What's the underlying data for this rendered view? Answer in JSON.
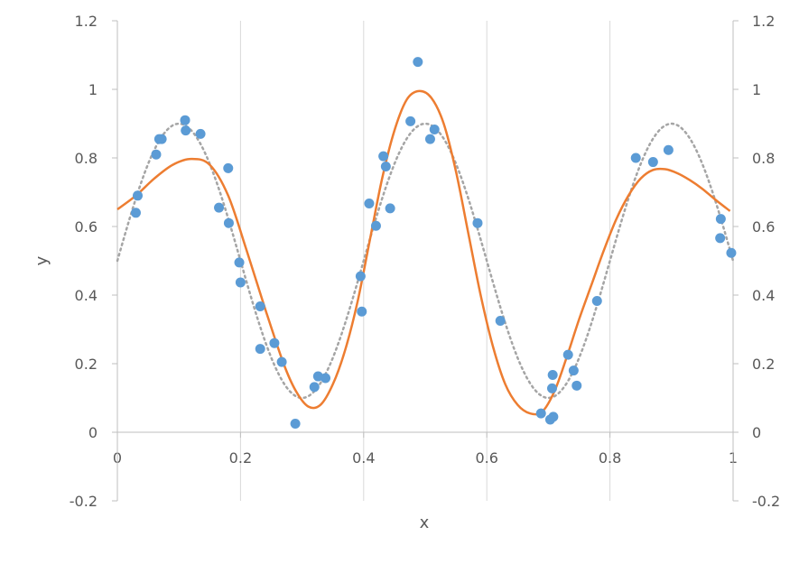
{
  "chart_data": {
    "type": "scatter",
    "title": "",
    "xlabel": "x",
    "ylabel": "y",
    "xlim": [
      0,
      1
    ],
    "ylim": [
      -0.2,
      1.2
    ],
    "xticks": [
      "0",
      "0.2",
      "0.4",
      "0.6",
      "0.8",
      "1"
    ],
    "yticks": [
      "-0.2",
      "0",
      "0.2",
      "0.4",
      "0.6",
      "0.8",
      "1",
      "1.2"
    ],
    "y2ticks": [
      "-0.2",
      "0",
      "0.2",
      "0.4",
      "0.6",
      "0.8",
      "1",
      "1.2"
    ],
    "grid": "vertical",
    "colors": {
      "points": "#5b9bd5",
      "fit": "#ed7d31",
      "true": "#a5a5a5",
      "grid": "#d9d9d9",
      "axis": "#bfbfbf"
    },
    "series": [
      {
        "kind": "scatter",
        "points": [
          [
            0.03,
            0.64
          ],
          [
            0.033,
            0.69
          ],
          [
            0.063,
            0.81
          ],
          [
            0.068,
            0.855
          ],
          [
            0.072,
            0.855
          ],
          [
            0.11,
            0.91
          ],
          [
            0.111,
            0.88
          ],
          [
            0.135,
            0.87
          ],
          [
            0.165,
            0.655
          ],
          [
            0.18,
            0.77
          ],
          [
            0.181,
            0.61
          ],
          [
            0.198,
            0.495
          ],
          [
            0.2,
            0.437
          ],
          [
            0.232,
            0.367
          ],
          [
            0.232,
            0.243
          ],
          [
            0.255,
            0.26
          ],
          [
            0.267,
            0.205
          ],
          [
            0.289,
            0.025
          ],
          [
            0.32,
            0.132
          ],
          [
            0.326,
            0.163
          ],
          [
            0.338,
            0.158
          ],
          [
            0.395,
            0.455
          ],
          [
            0.397,
            0.352
          ],
          [
            0.409,
            0.667
          ],
          [
            0.42,
            0.602
          ],
          [
            0.432,
            0.805
          ],
          [
            0.436,
            0.775
          ],
          [
            0.443,
            0.653
          ],
          [
            0.476,
            0.907
          ],
          [
            0.488,
            1.08
          ],
          [
            0.508,
            0.855
          ],
          [
            0.515,
            0.883
          ],
          [
            0.585,
            0.61
          ],
          [
            0.622,
            0.325
          ],
          [
            0.688,
            0.055
          ],
          [
            0.703,
            0.037
          ],
          [
            0.706,
            0.128
          ],
          [
            0.707,
            0.167
          ],
          [
            0.708,
            0.045
          ],
          [
            0.732,
            0.226
          ],
          [
            0.741,
            0.18
          ],
          [
            0.746,
            0.136
          ],
          [
            0.779,
            0.383
          ],
          [
            0.842,
            0.8
          ],
          [
            0.87,
            0.788
          ],
          [
            0.895,
            0.823
          ],
          [
            0.979,
            0.566
          ],
          [
            0.98,
            0.622
          ],
          [
            0.997,
            0.523
          ]
        ]
      },
      {
        "kind": "line",
        "style": "solid",
        "points": [
          [
            0,
            0.65
          ],
          [
            0.03,
            0.69
          ],
          [
            0.06,
            0.74
          ],
          [
            0.09,
            0.78
          ],
          [
            0.12,
            0.797
          ],
          [
            0.15,
            0.78
          ],
          [
            0.18,
            0.69
          ],
          [
            0.21,
            0.53
          ],
          [
            0.24,
            0.36
          ],
          [
            0.27,
            0.2
          ],
          [
            0.29,
            0.12
          ],
          [
            0.31,
            0.075
          ],
          [
            0.33,
            0.08
          ],
          [
            0.35,
            0.14
          ],
          [
            0.37,
            0.24
          ],
          [
            0.39,
            0.38
          ],
          [
            0.41,
            0.56
          ],
          [
            0.43,
            0.74
          ],
          [
            0.45,
            0.88
          ],
          [
            0.47,
            0.97
          ],
          [
            0.49,
            0.995
          ],
          [
            0.51,
            0.975
          ],
          [
            0.53,
            0.9
          ],
          [
            0.55,
            0.76
          ],
          [
            0.57,
            0.58
          ],
          [
            0.59,
            0.4
          ],
          [
            0.61,
            0.25
          ],
          [
            0.63,
            0.14
          ],
          [
            0.65,
            0.08
          ],
          [
            0.67,
            0.055
          ],
          [
            0.69,
            0.06
          ],
          [
            0.71,
            0.12
          ],
          [
            0.73,
            0.22
          ],
          [
            0.75,
            0.33
          ],
          [
            0.77,
            0.43
          ],
          [
            0.79,
            0.53
          ],
          [
            0.81,
            0.62
          ],
          [
            0.83,
            0.69
          ],
          [
            0.85,
            0.74
          ],
          [
            0.87,
            0.765
          ],
          [
            0.89,
            0.767
          ],
          [
            0.91,
            0.755
          ],
          [
            0.93,
            0.735
          ],
          [
            0.95,
            0.71
          ],
          [
            0.97,
            0.68
          ],
          [
            0.995,
            0.645
          ]
        ]
      },
      {
        "kind": "function",
        "style": "dotted",
        "expr": "0.5+0.4*sin(2*pi*x/0.4)"
      }
    ]
  }
}
